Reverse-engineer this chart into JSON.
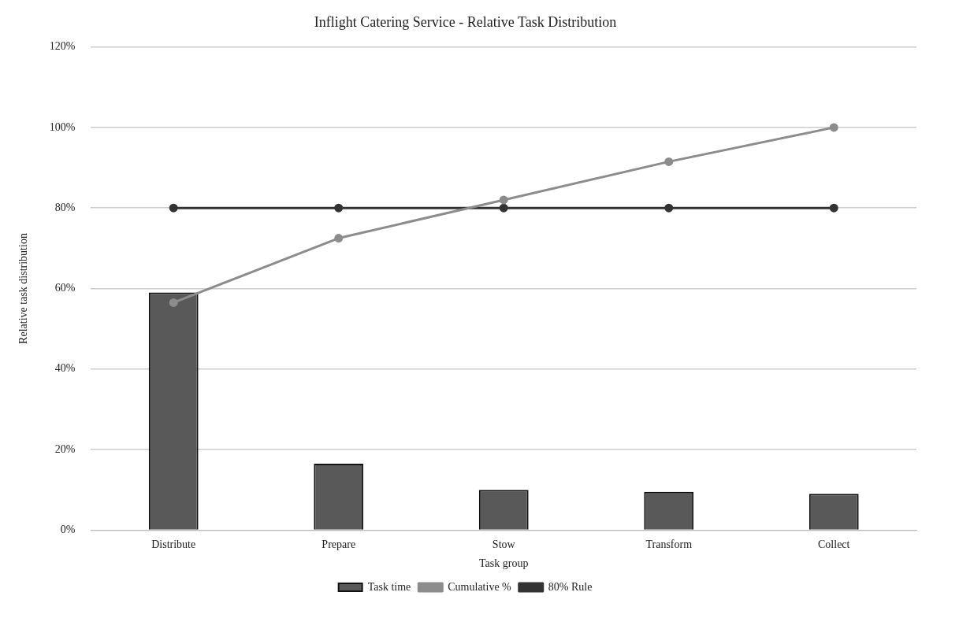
{
  "chart_data": {
    "type": "bar",
    "title": "Inflight Catering Service - Relative Task Distribution",
    "xlabel": "Task group",
    "ylabel": "Relative task distribution",
    "categories": [
      "Distribute",
      "Prepare",
      "Stow",
      "Transform",
      "Collect"
    ],
    "series": [
      {
        "name": "Task time",
        "color": "#595959",
        "values": [
          59,
          16.5,
          10,
          9.5,
          9
        ]
      },
      {
        "name": "Cumulative %",
        "type": "line",
        "color": "#8c8c8c",
        "values": [
          56.5,
          72.5,
          82,
          91.5,
          100
        ]
      },
      {
        "name": "80% Rule",
        "type": "line",
        "color": "#333333",
        "values": [
          80,
          80,
          80,
          80,
          80
        ]
      }
    ],
    "ylim": [
      0,
      120
    ],
    "yticks": [
      {
        "value": 0,
        "label": "0%"
      },
      {
        "value": 20,
        "label": "20%"
      },
      {
        "value": 40,
        "label": "40%"
      },
      {
        "value": 60,
        "label": "60%"
      },
      {
        "value": 80,
        "label": "80%"
      },
      {
        "value": 100,
        "label": "100%"
      },
      {
        "value": 120,
        "label": "120%"
      }
    ],
    "grid": "y",
    "legend": "bottom",
    "marker": "circle",
    "line_style": "solid"
  }
}
